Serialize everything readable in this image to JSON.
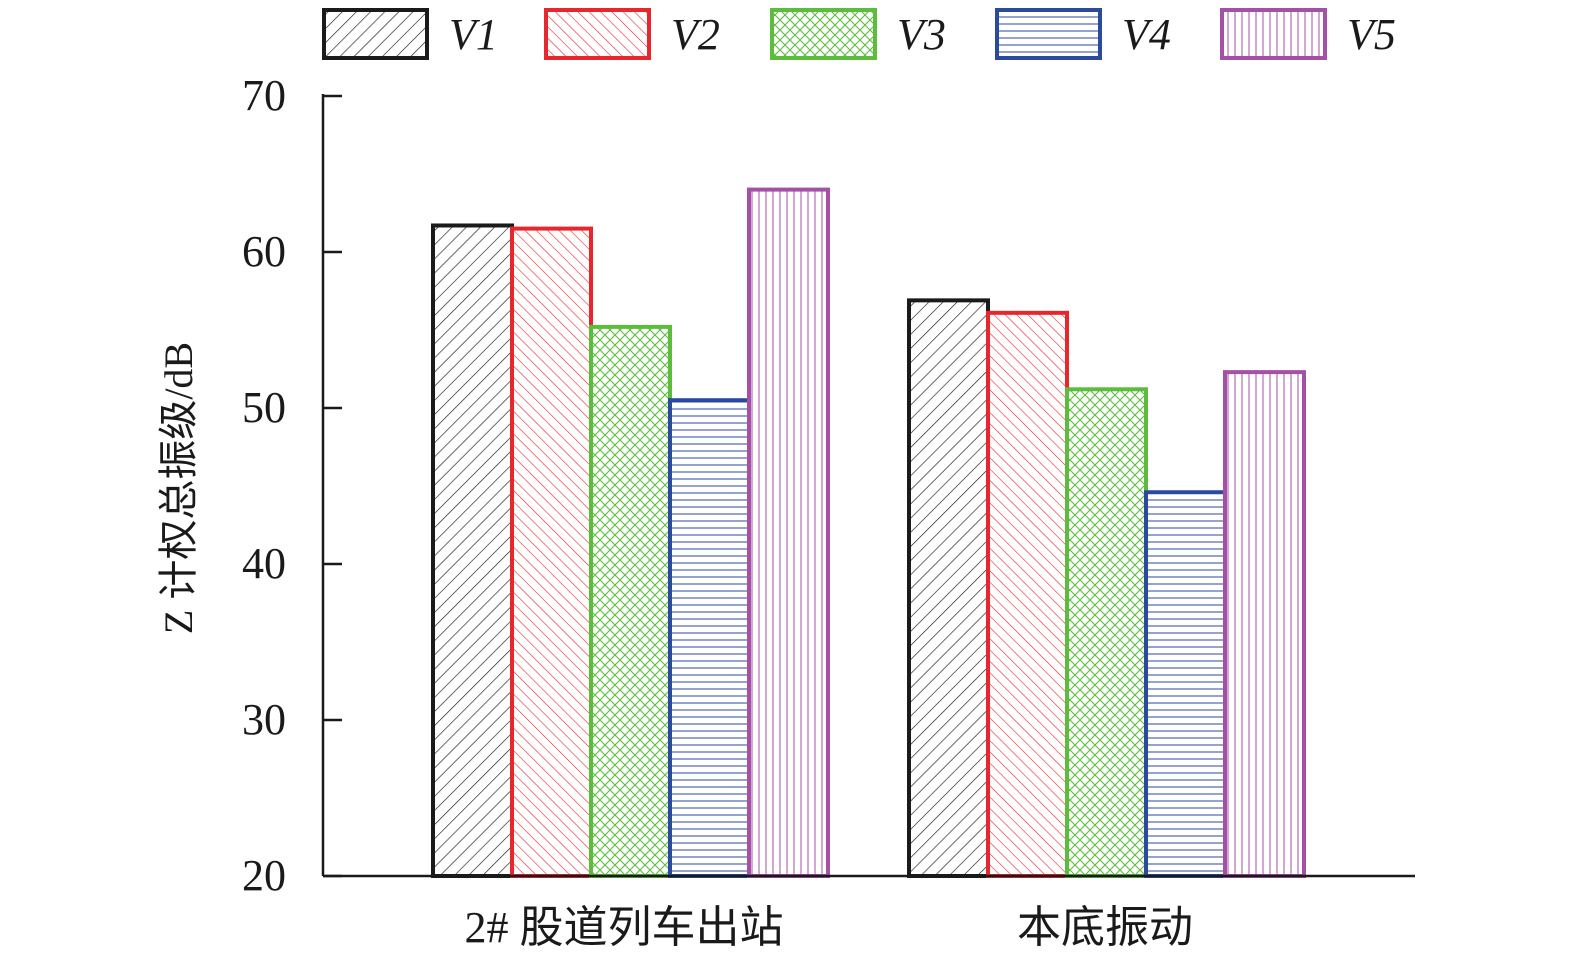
{
  "chart_data": {
    "type": "bar",
    "title": "",
    "xlabel": "",
    "ylabel": "Z 计权总振级/dB",
    "ylim": [
      20,
      70
    ],
    "yticks": [
      "20",
      "30",
      "40",
      "50",
      "60",
      "70"
    ],
    "categories": [
      "2# 股道列车出站",
      "本底振动"
    ],
    "grid": false,
    "legend_position": "top",
    "series": [
      {
        "name": "V1",
        "values": [
          61.7,
          56.9
        ],
        "color": "#1a1a1a",
        "pattern": "diagonal-up"
      },
      {
        "name": "V2",
        "values": [
          61.5,
          56.1
        ],
        "color": "#e8262d",
        "pattern": "diagonal-down"
      },
      {
        "name": "V3",
        "values": [
          55.2,
          51.2
        ],
        "color": "#5cbd3c",
        "pattern": "crosshatch"
      },
      {
        "name": "V4",
        "values": [
          50.5,
          44.6
        ],
        "color": "#2a4a9c",
        "pattern": "horizontal"
      },
      {
        "name": "V5",
        "values": [
          64.0,
          52.3
        ],
        "color": "#a550a7",
        "pattern": "vertical"
      }
    ]
  }
}
